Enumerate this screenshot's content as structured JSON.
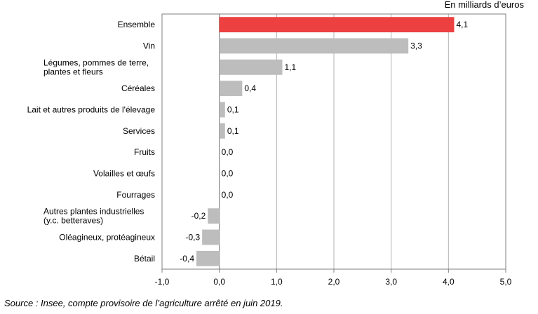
{
  "unit_label": "En milliards d’euros",
  "source": "Source : Insee, compte provisoire de l’agriculture arrêté en juin 2019.",
  "colors": {
    "highlight": "#ed4040",
    "bar": "#bdbdbd",
    "grid": "#b3b3b3",
    "frame": "#7f7f7f"
  },
  "chart_data": {
    "type": "bar",
    "orientation": "horizontal",
    "categories": [
      [
        "Ensemble"
      ],
      [
        "Vin"
      ],
      [
        "Légumes, pommes de terre,",
        "plantes et fleurs"
      ],
      [
        "Céréales"
      ],
      [
        "Lait et autres produits de l'élevage"
      ],
      [
        "Services"
      ],
      [
        "Fruits"
      ],
      [
        "Volailles et œufs"
      ],
      [
        "Fourrages"
      ],
      [
        "Autres plantes industrielles",
        "(y.c. betteraves)"
      ],
      [
        "Oléagineux, protéagineux"
      ],
      [
        "Bétail"
      ]
    ],
    "values": [
      4.1,
      3.3,
      1.1,
      0.4,
      0.1,
      0.1,
      0.0,
      0.0,
      0.0,
      -0.2,
      -0.3,
      -0.4
    ],
    "value_labels": [
      "4,1",
      "3,3",
      "1,1",
      "0,4",
      "0,1",
      "0,1",
      "0,0",
      "0,0",
      "0,0",
      "-0,2",
      "-0,3",
      "-0,4"
    ],
    "highlight_index": 0,
    "xlim": [
      -1.0,
      5.0
    ],
    "xticks": [
      -1.0,
      0.0,
      1.0,
      2.0,
      3.0,
      4.0,
      5.0
    ],
    "xtick_labels": [
      "-1,0",
      "0,0",
      "1,0",
      "2,0",
      "3,0",
      "4,0",
      "5,0"
    ],
    "grid": true,
    "legend": "none",
    "title": "",
    "xlabel": "",
    "ylabel": ""
  }
}
